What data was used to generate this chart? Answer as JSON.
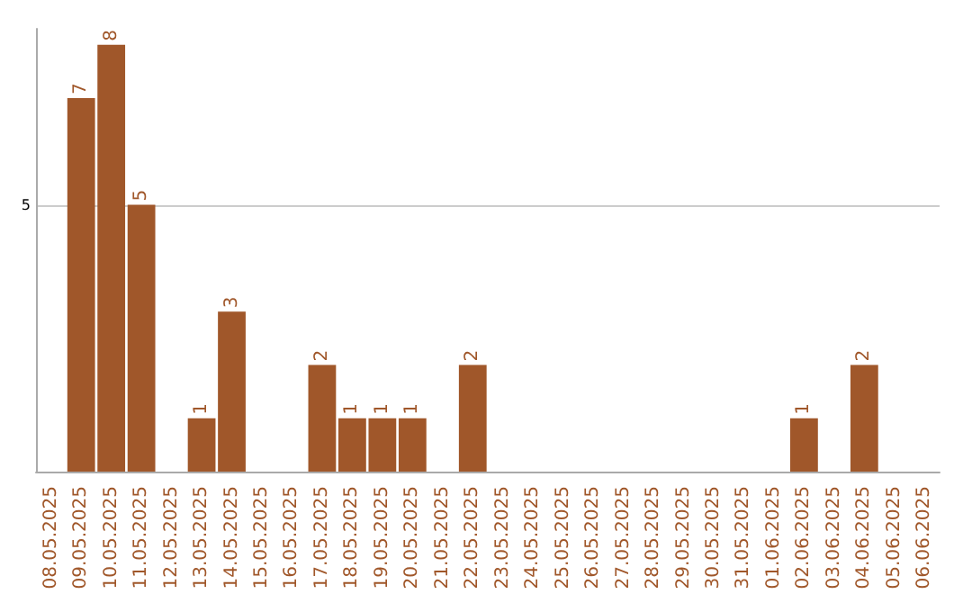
{
  "chart_data": {
    "type": "bar",
    "categories": [
      "08.05.2025",
      "09.05.2025",
      "10.05.2025",
      "11.05.2025",
      "12.05.2025",
      "13.05.2025",
      "14.05.2025",
      "15.05.2025",
      "16.05.2025",
      "17.05.2025",
      "18.05.2025",
      "19.05.2025",
      "20.05.2025",
      "21.05.2025",
      "22.05.2025",
      "23.05.2025",
      "24.05.2025",
      "25.05.2025",
      "26.05.2025",
      "27.05.2025",
      "28.05.2025",
      "29.05.2025",
      "30.05.2025",
      "31.05.2025",
      "01.06.2025",
      "02.06.2025",
      "03.06.2025",
      "04.06.2025",
      "05.06.2025",
      "06.06.2025"
    ],
    "values": [
      0,
      7,
      8,
      5,
      0,
      1,
      3,
      0,
      0,
      2,
      1,
      1,
      1,
      0,
      2,
      0,
      0,
      0,
      0,
      0,
      0,
      0,
      0,
      0,
      0,
      1,
      0,
      2,
      0,
      0
    ],
    "value_labels": [
      null,
      "7",
      "8",
      "5",
      null,
      "1",
      "3",
      null,
      null,
      "2",
      "1",
      "1",
      "1",
      null,
      "2",
      null,
      null,
      null,
      null,
      null,
      null,
      null,
      null,
      null,
      null,
      "1",
      null,
      "2",
      null,
      null
    ],
    "color": "#a0572a",
    "ylim": [
      0,
      8.3
    ],
    "yticks": [
      5
    ],
    "grid": "y"
  }
}
